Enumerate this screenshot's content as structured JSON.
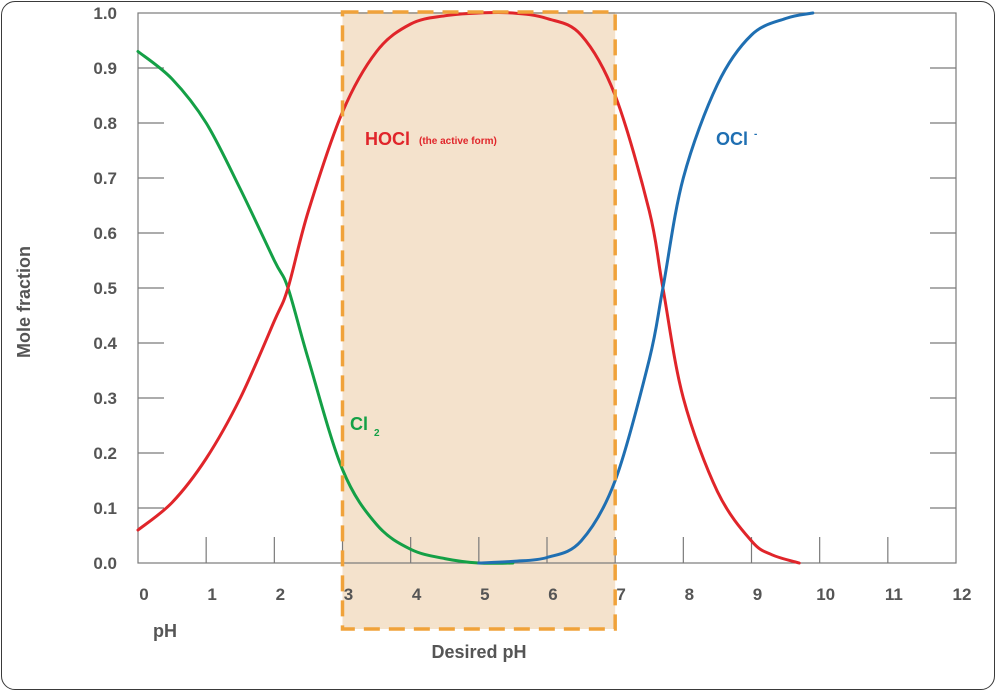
{
  "chart_data": {
    "type": "line",
    "xlabel": "pH",
    "ylabel": "Mole fraction",
    "xlim": [
      0,
      12
    ],
    "ylim": [
      0.0,
      1.0
    ],
    "x_ticks": [
      "0",
      "1",
      "2",
      "3",
      "4",
      "5",
      "6",
      "7",
      "8",
      "9",
      "10",
      "11",
      "12"
    ],
    "y_ticks": [
      "0.0",
      "0.1",
      "0.2",
      "0.3",
      "0.4",
      "0.5",
      "0.6",
      "0.7",
      "0.8",
      "0.9",
      "1.0"
    ],
    "grid": false,
    "series": [
      {
        "name": "Cl2",
        "color": "#14a046",
        "x": [
          0,
          0.5,
          1,
          1.5,
          2,
          2.2,
          2.5,
          3,
          3.5,
          4,
          4.5,
          5,
          5.5
        ],
        "y": [
          0.93,
          0.88,
          0.8,
          0.68,
          0.55,
          0.5,
          0.37,
          0.17,
          0.07,
          0.025,
          0.008,
          0.0,
          0.0
        ]
      },
      {
        "name": "HOCl",
        "color": "#e0252a",
        "x": [
          0,
          0.5,
          1,
          1.5,
          2,
          2.2,
          2.5,
          3,
          3.5,
          4,
          4.5,
          5,
          5.5,
          6,
          6.5,
          7,
          7.5,
          7.7,
          8,
          8.5,
          9,
          9.3,
          9.7
        ],
        "y": [
          0.06,
          0.11,
          0.19,
          0.3,
          0.44,
          0.5,
          0.64,
          0.82,
          0.93,
          0.98,
          0.995,
          1.0,
          1.0,
          0.99,
          0.96,
          0.85,
          0.64,
          0.5,
          0.3,
          0.13,
          0.04,
          0.015,
          0.0
        ]
      },
      {
        "name": "OCl-",
        "color": "#1f6fb2",
        "x": [
          5,
          5.5,
          6,
          6.5,
          7,
          7.5,
          7.7,
          8,
          8.5,
          9,
          9.5,
          9.9
        ],
        "y": [
          0.0,
          0.003,
          0.01,
          0.04,
          0.15,
          0.37,
          0.5,
          0.7,
          0.87,
          0.96,
          0.99,
          1.0
        ]
      }
    ],
    "highlight": {
      "xrange": [
        3,
        7
      ],
      "label": "Desired pH",
      "fill": "#f4e2cc",
      "stroke": "#f0a23a"
    },
    "annotations": {
      "hocl": {
        "main": "HOCl",
        "sub": "(the active form)",
        "color": "#e0252a"
      },
      "ocl": {
        "main": "OCl",
        "sup": "-",
        "color": "#1f6fb2"
      },
      "cl2": {
        "main": "Cl",
        "sub": "2",
        "color": "#14a046"
      }
    }
  }
}
